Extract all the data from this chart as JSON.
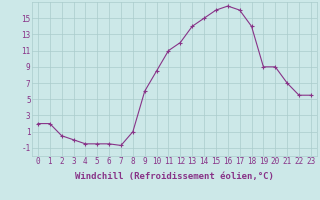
{
  "x": [
    0,
    1,
    2,
    3,
    4,
    5,
    6,
    7,
    8,
    9,
    10,
    11,
    12,
    13,
    14,
    15,
    16,
    17,
    18,
    19,
    20,
    21,
    22,
    23
  ],
  "y": [
    2,
    2,
    0.5,
    0,
    -0.5,
    -0.5,
    -0.5,
    -0.7,
    1,
    6,
    8.5,
    11,
    12,
    14,
    15,
    16,
    16.5,
    16,
    14,
    9,
    9,
    7,
    5.5,
    5.5
  ],
  "line_color": "#883388",
  "marker": "+",
  "marker_size": 3,
  "marker_lw": 0.8,
  "bg_color": "#cce8e8",
  "grid_color": "#aacccc",
  "xlabel": "Windchill (Refroidissement éolien,°C)",
  "xlabel_color": "#883388",
  "yticks": [
    -1,
    1,
    3,
    5,
    7,
    9,
    11,
    13,
    15
  ],
  "xtick_labels": [
    "0",
    "1",
    "2",
    "3",
    "4",
    "5",
    "6",
    "7",
    "8",
    "9",
    "10",
    "11",
    "12",
    "13",
    "14",
    "15",
    "16",
    "17",
    "18",
    "19",
    "20",
    "21",
    "22",
    "23"
  ],
  "ylim": [
    -2,
    17
  ],
  "xlim": [
    -0.5,
    23.5
  ],
  "tick_color": "#883388",
  "tick_fontsize": 5.5,
  "xlabel_fontsize": 6.5,
  "line_width": 0.8
}
